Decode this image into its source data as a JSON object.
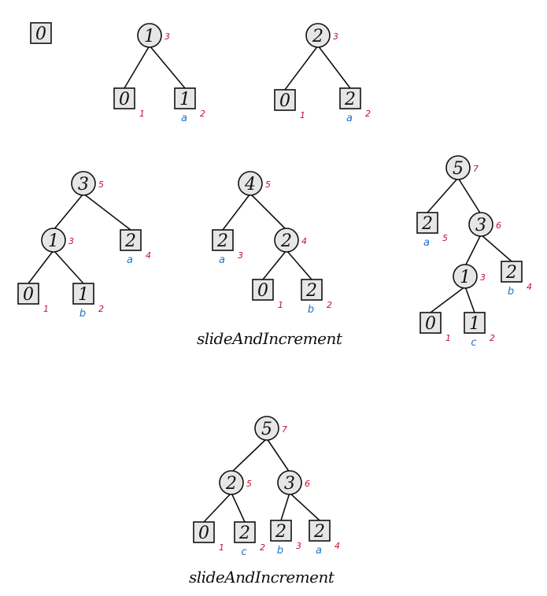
{
  "diagrams": [
    {
      "nodes": [
        {
          "id": "r",
          "shape": "square",
          "label": "0"
        }
      ],
      "edges": []
    },
    {
      "nodes": [
        {
          "id": "r",
          "shape": "circle",
          "label": "1",
          "red": "3"
        },
        {
          "id": "a",
          "shape": "square",
          "label": "0",
          "red": "1"
        },
        {
          "id": "b",
          "shape": "square",
          "label": "1",
          "red": "2",
          "blue": "a"
        }
      ],
      "edges": [
        [
          "r",
          "a"
        ],
        [
          "r",
          "b"
        ]
      ]
    },
    {
      "nodes": [
        {
          "id": "r",
          "shape": "circle",
          "label": "2",
          "red": "3"
        },
        {
          "id": "a",
          "shape": "square",
          "label": "0",
          "red": "1"
        },
        {
          "id": "b",
          "shape": "square",
          "label": "2",
          "red": "2",
          "blue": "a"
        }
      ],
      "edges": [
        [
          "r",
          "a"
        ],
        [
          "r",
          "b"
        ]
      ]
    },
    {
      "nodes": [
        {
          "id": "r",
          "shape": "circle",
          "label": "3",
          "red": "5"
        },
        {
          "id": "m",
          "shape": "circle",
          "label": "1",
          "red": "3"
        },
        {
          "id": "c",
          "shape": "square",
          "label": "2",
          "red": "4",
          "blue": "a"
        },
        {
          "id": "a",
          "shape": "square",
          "label": "0",
          "red": "1"
        },
        {
          "id": "b",
          "shape": "square",
          "label": "1",
          "red": "2",
          "blue": "b"
        }
      ],
      "edges": [
        [
          "r",
          "m"
        ],
        [
          "r",
          "c"
        ],
        [
          "m",
          "a"
        ],
        [
          "m",
          "b"
        ]
      ]
    },
    {
      "nodes": [
        {
          "id": "r",
          "shape": "circle",
          "label": "4",
          "red": "5"
        },
        {
          "id": "l",
          "shape": "square",
          "label": "2",
          "red": "3",
          "blue": "a"
        },
        {
          "id": "m",
          "shape": "circle",
          "label": "2",
          "red": "4"
        },
        {
          "id": "a",
          "shape": "square",
          "label": "0",
          "red": "1"
        },
        {
          "id": "b",
          "shape": "square",
          "label": "2",
          "red": "2",
          "blue": "b"
        }
      ],
      "edges": [
        [
          "r",
          "l"
        ],
        [
          "r",
          "m"
        ],
        [
          "m",
          "a"
        ],
        [
          "m",
          "b"
        ]
      ]
    },
    {
      "nodes": [
        {
          "id": "r",
          "shape": "circle",
          "label": "5",
          "red": "7"
        },
        {
          "id": "l",
          "shape": "square",
          "label": "2",
          "red": "5",
          "blue": "a"
        },
        {
          "id": "m",
          "shape": "circle",
          "label": "3",
          "red": "6"
        },
        {
          "id": "n",
          "shape": "circle",
          "label": "1",
          "red": "3"
        },
        {
          "id": "c",
          "shape": "square",
          "label": "2",
          "red": "4",
          "blue": "b"
        },
        {
          "id": "a",
          "shape": "square",
          "label": "0",
          "red": "1"
        },
        {
          "id": "b",
          "shape": "square",
          "label": "1",
          "red": "2",
          "blue": "c"
        }
      ],
      "edges": [
        [
          "r",
          "l"
        ],
        [
          "r",
          "m"
        ],
        [
          "m",
          "n"
        ],
        [
          "m",
          "c"
        ],
        [
          "n",
          "a"
        ],
        [
          "n",
          "b"
        ]
      ]
    },
    {
      "nodes": [
        {
          "id": "r",
          "shape": "circle",
          "label": "5",
          "red": "7"
        },
        {
          "id": "L",
          "shape": "circle",
          "label": "2",
          "red": "5"
        },
        {
          "id": "R",
          "shape": "circle",
          "label": "3",
          "red": "6"
        },
        {
          "id": "a",
          "shape": "square",
          "label": "0",
          "red": "1"
        },
        {
          "id": "b",
          "shape": "square",
          "label": "2",
          "red": "2",
          "blue": "c"
        },
        {
          "id": "c",
          "shape": "square",
          "label": "2",
          "red": "3",
          "blue": "b"
        },
        {
          "id": "d",
          "shape": "square",
          "label": "2",
          "red": "4",
          "blue": "a"
        }
      ],
      "edges": [
        [
          "r",
          "L"
        ],
        [
          "r",
          "R"
        ],
        [
          "L",
          "a"
        ],
        [
          "L",
          "b"
        ],
        [
          "R",
          "c"
        ],
        [
          "R",
          "d"
        ]
      ]
    }
  ],
  "captions": [
    "slideAndIncrement",
    "slideAndIncrement"
  ]
}
